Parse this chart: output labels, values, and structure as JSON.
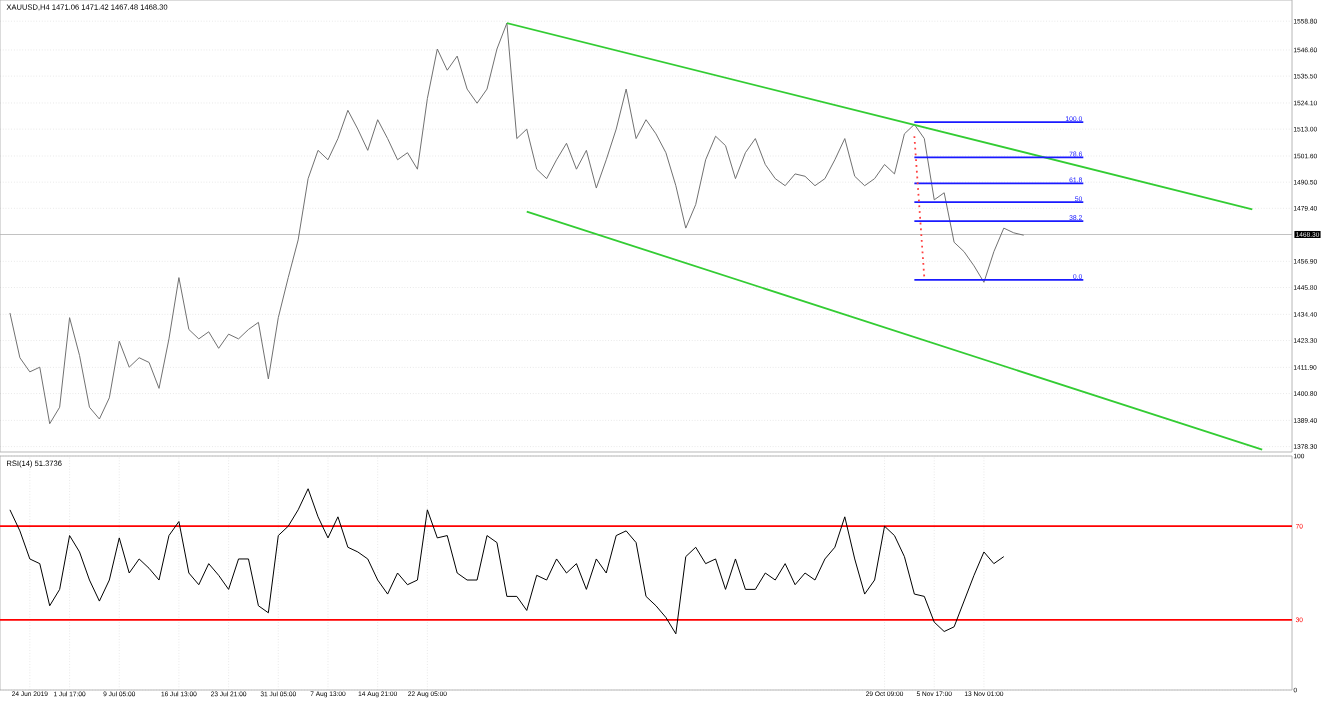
{
  "chart_data": [
    {
      "type": "line",
      "title": "XAUUSD,H4  1471.06 1471.42 1467.48 1468.30",
      "grid": "y",
      "marker": "none",
      "tick_labels": "y",
      "categories": [
        null,
        null,
        null,
        null,
        null,
        null,
        null,
        null,
        null,
        null,
        null,
        null,
        null,
        null,
        null,
        null,
        null,
        null,
        null,
        null,
        null,
        null,
        null,
        null,
        null,
        null,
        null,
        null,
        null,
        null,
        null,
        null,
        null,
        null,
        null,
        null,
        null,
        null,
        null,
        null,
        null,
        null,
        null,
        null,
        null,
        null,
        null,
        null,
        null,
        null,
        null,
        null,
        null,
        null,
        null,
        null,
        null,
        null,
        null,
        null,
        null,
        null,
        null,
        null,
        null,
        null,
        null,
        null,
        null,
        null,
        null,
        null,
        null,
        null,
        null,
        null,
        null,
        null,
        null,
        null,
        null,
        null,
        null,
        null,
        null,
        null,
        null,
        null,
        null,
        null,
        null,
        null,
        null,
        null,
        null,
        null,
        null,
        null,
        null,
        null,
        null,
        null,
        null,
        null,
        null,
        null,
        null,
        null,
        null,
        null,
        null,
        null,
        null,
        null,
        null,
        null,
        null,
        null,
        null,
        null,
        null,
        null,
        null,
        null,
        null,
        null,
        null,
        null,
        null
      ],
      "ylim": [
        1376.0,
        1567.8
      ],
      "yticks": [
        {
          "value": 1378.3,
          "label": "1378.30"
        },
        {
          "value": 1389.4,
          "label": "1389.40"
        },
        {
          "value": 1400.8,
          "label": "1400.80"
        },
        {
          "value": 1411.9,
          "label": "1411.90"
        },
        {
          "value": 1423.3,
          "label": "1423.30"
        },
        {
          "value": 1434.4,
          "label": "1434.40"
        },
        {
          "value": 1445.8,
          "label": "1445.80"
        },
        {
          "value": 1456.9,
          "label": "1456.90"
        },
        {
          "value": 1479.4,
          "label": "1479.40"
        },
        {
          "value": 1490.5,
          "label": "1490.50"
        },
        {
          "value": 1501.6,
          "label": "1501.60"
        },
        {
          "value": 1513.0,
          "label": "1513.00"
        },
        {
          "value": 1524.1,
          "label": "1524.10"
        },
        {
          "value": 1535.5,
          "label": "1535.50"
        },
        {
          "value": 1546.6,
          "label": "1546.60"
        },
        {
          "value": 1558.8,
          "label": "1558.80"
        }
      ],
      "ref_lines": [
        {
          "axis": "y",
          "value": 1468.3,
          "label": "1468.30",
          "color": "#b0b0b0"
        }
      ],
      "series": [
        {
          "color": "#707070",
          "values": [
            1435,
            1416,
            1410,
            1412,
            1388,
            1395,
            1433,
            1417,
            1395,
            1390,
            1399,
            1423,
            1412,
            1416,
            1414,
            1403,
            1424,
            1450,
            1428,
            1424,
            1427,
            1420,
            1426,
            1424,
            1428,
            1431,
            1407,
            1433,
            1450,
            1466,
            1492,
            1504,
            1500,
            1509,
            1521,
            1513,
            1504,
            1517,
            1509,
            1500,
            1503,
            1496,
            1526,
            1547,
            1538,
            1544,
            1530,
            1524,
            1530,
            1547,
            1558,
            1509,
            1513,
            1496,
            1492,
            1500,
            1507,
            1496,
            1504,
            1488,
            1500,
            1513,
            1530,
            1509,
            1517,
            1511,
            1503,
            1489,
            1471,
            1481,
            1500,
            1510,
            1506,
            1492,
            1503,
            1509,
            1498,
            1492,
            1489,
            1494,
            1493,
            1489,
            1492,
            1500,
            1509,
            1493,
            1489,
            1492,
            1498,
            1494,
            1511,
            1515,
            1509,
            1483,
            1486,
            1465,
            1461,
            1455,
            1448,
            1461,
            1471,
            1469,
            1468,
            null,
            null,
            null,
            null,
            null,
            null,
            null,
            null,
            null,
            null,
            null,
            null,
            null,
            null,
            null,
            null,
            null,
            null,
            null,
            null,
            null,
            null,
            null,
            null,
            null,
            null
          ]
        },
        {
          "color": "#33cc33",
          "values": [
            null,
            null,
            null,
            null,
            null,
            null,
            null,
            null,
            null,
            null,
            null,
            null,
            null,
            null,
            null,
            null,
            null,
            null,
            null,
            null,
            null,
            null,
            null,
            null,
            null,
            null,
            null,
            null,
            null,
            null,
            null,
            null,
            null,
            null,
            null,
            null,
            null,
            null,
            null,
            null,
            null,
            null,
            null,
            null,
            null,
            null,
            null,
            null,
            null,
            null,
            1558,
            null,
            null,
            null,
            null,
            null,
            null,
            null,
            null,
            null,
            null,
            null,
            null,
            null,
            null,
            null,
            null,
            null,
            null,
            null,
            null,
            null,
            null,
            null,
            null,
            null,
            null,
            null,
            null,
            null,
            null,
            null,
            null,
            null,
            null,
            null,
            null,
            null,
            null,
            null,
            null,
            null,
            null,
            null,
            null,
            null,
            null,
            null,
            null,
            null,
            null,
            null,
            null,
            null,
            null,
            null,
            null,
            null,
            null,
            null,
            null,
            null,
            null,
            null,
            null,
            null,
            null,
            null,
            null,
            null,
            null,
            null,
            null,
            null,
            null,
            1479,
            null,
            null,
            null
          ]
        },
        {
          "color": "#33cc33",
          "values": [
            null,
            null,
            null,
            null,
            null,
            null,
            null,
            null,
            null,
            null,
            null,
            null,
            null,
            null,
            null,
            null,
            null,
            null,
            null,
            null,
            null,
            null,
            null,
            null,
            null,
            null,
            null,
            null,
            null,
            null,
            null,
            null,
            null,
            null,
            null,
            null,
            null,
            null,
            null,
            null,
            null,
            null,
            null,
            null,
            null,
            null,
            null,
            null,
            null,
            null,
            null,
            null,
            1478,
            null,
            null,
            null,
            null,
            null,
            null,
            null,
            null,
            null,
            null,
            null,
            null,
            null,
            null,
            null,
            null,
            null,
            null,
            null,
            null,
            null,
            null,
            null,
            null,
            null,
            null,
            null,
            null,
            null,
            null,
            null,
            null,
            null,
            null,
            null,
            null,
            null,
            null,
            null,
            null,
            null,
            null,
            null,
            null,
            null,
            null,
            null,
            null,
            null,
            null,
            null,
            null,
            null,
            null,
            null,
            null,
            null,
            null,
            null,
            null,
            null,
            null,
            null,
            null,
            null,
            null,
            null,
            null,
            null,
            null,
            null,
            null,
            null,
            1377,
            null,
            null
          ]
        },
        {
          "color": "#1a1aff",
          "name": "100.0",
          "values": [
            null,
            null,
            null,
            null,
            null,
            null,
            null,
            null,
            null,
            null,
            null,
            null,
            null,
            null,
            null,
            null,
            null,
            null,
            null,
            null,
            null,
            null,
            null,
            null,
            null,
            null,
            null,
            null,
            null,
            null,
            null,
            null,
            null,
            null,
            null,
            null,
            null,
            null,
            null,
            null,
            null,
            null,
            null,
            null,
            null,
            null,
            null,
            null,
            null,
            null,
            null,
            null,
            null,
            null,
            null,
            null,
            null,
            null,
            null,
            null,
            null,
            null,
            null,
            null,
            null,
            null,
            null,
            null,
            null,
            null,
            null,
            null,
            null,
            null,
            null,
            null,
            null,
            null,
            null,
            null,
            null,
            null,
            null,
            null,
            null,
            null,
            null,
            null,
            null,
            null,
            null,
            1516,
            null,
            null,
            null,
            null,
            null,
            null,
            null,
            null,
            null,
            null,
            null,
            null,
            null,
            null,
            null,
            null,
            1516,
            null,
            null,
            null,
            null,
            null,
            null,
            null,
            null,
            null,
            null,
            null,
            null,
            null,
            null,
            null,
            null,
            null,
            null,
            null,
            null
          ]
        },
        {
          "color": "#1a1aff",
          "name": "78.6",
          "values": [
            null,
            null,
            null,
            null,
            null,
            null,
            null,
            null,
            null,
            null,
            null,
            null,
            null,
            null,
            null,
            null,
            null,
            null,
            null,
            null,
            null,
            null,
            null,
            null,
            null,
            null,
            null,
            null,
            null,
            null,
            null,
            null,
            null,
            null,
            null,
            null,
            null,
            null,
            null,
            null,
            null,
            null,
            null,
            null,
            null,
            null,
            null,
            null,
            null,
            null,
            null,
            null,
            null,
            null,
            null,
            null,
            null,
            null,
            null,
            null,
            null,
            null,
            null,
            null,
            null,
            null,
            null,
            null,
            null,
            null,
            null,
            null,
            null,
            null,
            null,
            null,
            null,
            null,
            null,
            null,
            null,
            null,
            null,
            null,
            null,
            null,
            null,
            null,
            null,
            null,
            null,
            1501,
            null,
            null,
            null,
            null,
            null,
            null,
            null,
            null,
            null,
            null,
            null,
            null,
            null,
            null,
            null,
            null,
            1501,
            null,
            null,
            null,
            null,
            null,
            null,
            null,
            null,
            null,
            null,
            null,
            null,
            null,
            null,
            null,
            null,
            null,
            null,
            null,
            null
          ]
        },
        {
          "color": "#1a1aff",
          "name": "61.8",
          "values": [
            null,
            null,
            null,
            null,
            null,
            null,
            null,
            null,
            null,
            null,
            null,
            null,
            null,
            null,
            null,
            null,
            null,
            null,
            null,
            null,
            null,
            null,
            null,
            null,
            null,
            null,
            null,
            null,
            null,
            null,
            null,
            null,
            null,
            null,
            null,
            null,
            null,
            null,
            null,
            null,
            null,
            null,
            null,
            null,
            null,
            null,
            null,
            null,
            null,
            null,
            null,
            null,
            null,
            null,
            null,
            null,
            null,
            null,
            null,
            null,
            null,
            null,
            null,
            null,
            null,
            null,
            null,
            null,
            null,
            null,
            null,
            null,
            null,
            null,
            null,
            null,
            null,
            null,
            null,
            null,
            null,
            null,
            null,
            null,
            null,
            null,
            null,
            null,
            null,
            null,
            null,
            1490,
            null,
            null,
            null,
            null,
            null,
            null,
            null,
            null,
            null,
            null,
            null,
            null,
            null,
            null,
            null,
            null,
            1490,
            null,
            null,
            null,
            null,
            null,
            null,
            null,
            null,
            null,
            null,
            null,
            null,
            null,
            null,
            null,
            null,
            null,
            null,
            null,
            null
          ]
        },
        {
          "color": "#1a1aff",
          "name": "50",
          "values": [
            null,
            null,
            null,
            null,
            null,
            null,
            null,
            null,
            null,
            null,
            null,
            null,
            null,
            null,
            null,
            null,
            null,
            null,
            null,
            null,
            null,
            null,
            null,
            null,
            null,
            null,
            null,
            null,
            null,
            null,
            null,
            null,
            null,
            null,
            null,
            null,
            null,
            null,
            null,
            null,
            null,
            null,
            null,
            null,
            null,
            null,
            null,
            null,
            null,
            null,
            null,
            null,
            null,
            null,
            null,
            null,
            null,
            null,
            null,
            null,
            null,
            null,
            null,
            null,
            null,
            null,
            null,
            null,
            null,
            null,
            null,
            null,
            null,
            null,
            null,
            null,
            null,
            null,
            null,
            null,
            null,
            null,
            null,
            null,
            null,
            null,
            null,
            null,
            null,
            null,
            null,
            1482,
            null,
            null,
            null,
            null,
            null,
            null,
            null,
            null,
            null,
            null,
            null,
            null,
            null,
            null,
            null,
            null,
            1482,
            null,
            null,
            null,
            null,
            null,
            null,
            null,
            null,
            null,
            null,
            null,
            null,
            null,
            null,
            null,
            null,
            null,
            null,
            null,
            null
          ]
        },
        {
          "color": "#1a1aff",
          "name": "38.2",
          "values": [
            null,
            null,
            null,
            null,
            null,
            null,
            null,
            null,
            null,
            null,
            null,
            null,
            null,
            null,
            null,
            null,
            null,
            null,
            null,
            null,
            null,
            null,
            null,
            null,
            null,
            null,
            null,
            null,
            null,
            null,
            null,
            null,
            null,
            null,
            null,
            null,
            null,
            null,
            null,
            null,
            null,
            null,
            null,
            null,
            null,
            null,
            null,
            null,
            null,
            null,
            null,
            null,
            null,
            null,
            null,
            null,
            null,
            null,
            null,
            null,
            null,
            null,
            null,
            null,
            null,
            null,
            null,
            null,
            null,
            null,
            null,
            null,
            null,
            null,
            null,
            null,
            null,
            null,
            null,
            null,
            null,
            null,
            null,
            null,
            null,
            null,
            null,
            null,
            null,
            null,
            null,
            1474,
            null,
            null,
            null,
            null,
            null,
            null,
            null,
            null,
            null,
            null,
            null,
            null,
            null,
            null,
            null,
            null,
            1474,
            null,
            null,
            null,
            null,
            null,
            null,
            null,
            null,
            null,
            null,
            null,
            null,
            null,
            null,
            null,
            null,
            null,
            null,
            null,
            null
          ]
        },
        {
          "color": "#1a1aff",
          "name": "0.0",
          "values": [
            null,
            null,
            null,
            null,
            null,
            null,
            null,
            null,
            null,
            null,
            null,
            null,
            null,
            null,
            null,
            null,
            null,
            null,
            null,
            null,
            null,
            null,
            null,
            null,
            null,
            null,
            null,
            null,
            null,
            null,
            null,
            null,
            null,
            null,
            null,
            null,
            null,
            null,
            null,
            null,
            null,
            null,
            null,
            null,
            null,
            null,
            null,
            null,
            null,
            null,
            null,
            null,
            null,
            null,
            null,
            null,
            null,
            null,
            null,
            null,
            null,
            null,
            null,
            null,
            null,
            null,
            null,
            null,
            null,
            null,
            null,
            null,
            null,
            null,
            null,
            null,
            null,
            null,
            null,
            null,
            null,
            null,
            null,
            null,
            null,
            null,
            null,
            null,
            null,
            null,
            null,
            1449,
            null,
            null,
            null,
            null,
            null,
            null,
            null,
            null,
            null,
            null,
            null,
            null,
            null,
            null,
            null,
            null,
            1449,
            null,
            null,
            null,
            null,
            null,
            null,
            null,
            null,
            null,
            null,
            null,
            null,
            null,
            null,
            null,
            null,
            null,
            null,
            null,
            null
          ]
        },
        {
          "color": "#ff4040",
          "line_style": "dotted",
          "values": [
            null,
            null,
            null,
            null,
            null,
            null,
            null,
            null,
            null,
            null,
            null,
            null,
            null,
            null,
            null,
            null,
            null,
            null,
            null,
            null,
            null,
            null,
            null,
            null,
            null,
            null,
            null,
            null,
            null,
            null,
            null,
            null,
            null,
            null,
            null,
            null,
            null,
            null,
            null,
            null,
            null,
            null,
            null,
            null,
            null,
            null,
            null,
            null,
            null,
            null,
            null,
            null,
            null,
            null,
            null,
            null,
            null,
            null,
            null,
            null,
            null,
            null,
            null,
            null,
            null,
            null,
            null,
            null,
            null,
            null,
            null,
            null,
            null,
            null,
            null,
            null,
            null,
            null,
            null,
            null,
            null,
            null,
            null,
            null,
            null,
            null,
            null,
            null,
            null,
            null,
            null,
            1510,
            1450,
            null,
            null,
            null,
            null,
            null,
            null,
            null,
            null,
            null,
            null,
            null,
            null,
            null,
            null,
            null,
            null,
            null,
            null,
            null,
            null,
            null,
            null,
            null,
            null,
            null,
            null,
            null,
            null,
            null,
            null,
            null,
            null,
            null,
            null,
            null,
            null
          ]
        }
      ]
    },
    {
      "type": "line",
      "title": "RSI(14) 51.3736",
      "grid": true,
      "marker": "none",
      "categories": [
        null,
        null,
        "24 Jun 2019",
        null,
        null,
        null,
        "1 Jul 17:00",
        null,
        null,
        null,
        null,
        "9 Jul 05:00",
        null,
        null,
        null,
        null,
        null,
        "16 Jul 13:00",
        null,
        null,
        null,
        null,
        "23 Jul 21:00",
        null,
        null,
        null,
        null,
        "31 Jul 05:00",
        null,
        null,
        null,
        null,
        "7 Aug 13:00",
        null,
        null,
        null,
        null,
        "14 Aug 21:00",
        null,
        null,
        null,
        null,
        "22 Aug 05:00",
        null,
        null,
        null,
        null,
        null,
        null,
        null,
        null,
        null,
        null,
        null,
        null,
        null,
        null,
        null,
        null,
        null,
        null,
        null,
        null,
        null,
        null,
        null,
        null,
        null,
        null,
        null,
        null,
        null,
        null,
        null,
        null,
        null,
        null,
        null,
        null,
        null,
        null,
        null,
        null,
        null,
        null,
        null,
        null,
        null,
        "29 Oct 09:00",
        null,
        null,
        null,
        null,
        "5 Nov 17:00",
        null,
        null,
        null,
        null,
        "13 Nov 01:00",
        null,
        null,
        null,
        null,
        null,
        null,
        null,
        null,
        null,
        null,
        null,
        null,
        null,
        null,
        null,
        null,
        null,
        null,
        null,
        null,
        null,
        null,
        null,
        null,
        null,
        null,
        null,
        null,
        null,
        null
      ],
      "ylim": [
        0,
        100
      ],
      "yticks": [
        0,
        100
      ],
      "ref_lines": [
        {
          "axis": "y",
          "value": 70,
          "label": "70",
          "color": "#ff0000"
        },
        {
          "axis": "y",
          "value": 30,
          "label": "30",
          "color": "#ff0000"
        }
      ],
      "series": [
        {
          "color": "#000000",
          "values": [
            77,
            68,
            56,
            54,
            36,
            43,
            66,
            59,
            47,
            38,
            47,
            65,
            50,
            56,
            52,
            47,
            66,
            72,
            50,
            45,
            54,
            49,
            43,
            56,
            56,
            36,
            33,
            66,
            70,
            77,
            86,
            74,
            65,
            74,
            61,
            59,
            56,
            47,
            41,
            50,
            45,
            47,
            77,
            65,
            66,
            50,
            47,
            47,
            66,
            63,
            40,
            40,
            34,
            49,
            47,
            56,
            50,
            54,
            43,
            56,
            50,
            66,
            68,
            63,
            40,
            36,
            31,
            24,
            57,
            61,
            54,
            56,
            43,
            56,
            43,
            43,
            50,
            47,
            54,
            45,
            50,
            47,
            56,
            61,
            74,
            56,
            41,
            47,
            70,
            66,
            57,
            41,
            40,
            29,
            25,
            27,
            38,
            49,
            59,
            54,
            57,
            null,
            null,
            null,
            null,
            null,
            null,
            null,
            null,
            null,
            null,
            null,
            null,
            null,
            null,
            null,
            null,
            null,
            null,
            null,
            null,
            null,
            null,
            null,
            null,
            null,
            null,
            null,
            null
          ]
        }
      ]
    }
  ]
}
